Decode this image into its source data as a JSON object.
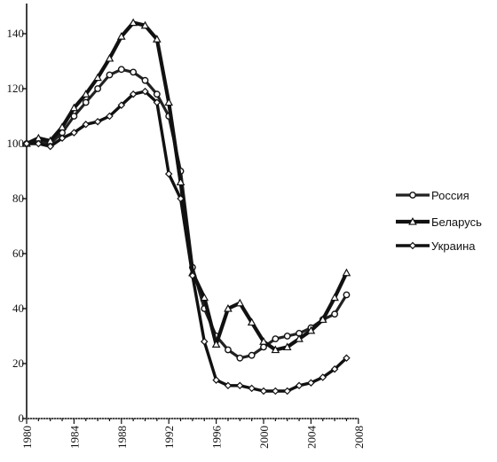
{
  "chart_data": {
    "type": "line",
    "title": "",
    "xlabel": "",
    "ylabel": "",
    "xlim": [
      1980,
      2008
    ],
    "ylim": [
      0,
      150
    ],
    "x_ticks": [
      "1980",
      "1984",
      "1988",
      "1992",
      "1996",
      "2000",
      "2004",
      "2008"
    ],
    "y_ticks": [
      "0",
      "20",
      "40",
      "60",
      "80",
      "100",
      "120",
      "140"
    ],
    "grid": false,
    "legend_position": "right",
    "x": [
      1980,
      1981,
      1982,
      1983,
      1984,
      1985,
      1986,
      1987,
      1988,
      1989,
      1990,
      1991,
      1992,
      1993,
      1994,
      1995,
      1996,
      1997,
      1998,
      1999,
      2000,
      2001,
      2002,
      2003,
      2004,
      2005,
      2006,
      2007
    ],
    "series": [
      {
        "name": "Россия",
        "marker": "circle",
        "color": "#222222",
        "values": [
          100,
          101,
          100,
          104,
          110,
          115,
          120,
          125,
          127,
          126,
          123,
          118,
          110,
          90,
          55,
          40,
          30,
          25,
          22,
          23,
          26,
          29,
          30,
          31,
          33,
          36,
          38,
          45
        ]
      },
      {
        "name": "Беларусь",
        "marker": "triangle",
        "color": "#111111",
        "values": [
          100,
          102,
          101,
          106,
          113,
          118,
          124,
          131,
          139,
          144,
          143,
          138,
          115,
          86,
          53,
          44,
          27,
          40,
          42,
          35,
          28,
          25,
          26,
          29,
          32,
          36,
          44,
          53
        ]
      },
      {
        "name": "Украина",
        "marker": "diamond",
        "color": "#111111",
        "values": [
          100,
          100,
          99,
          102,
          104,
          107,
          108,
          110,
          114,
          118,
          119,
          115,
          89,
          80,
          52,
          28,
          14,
          12,
          12,
          11,
          10,
          10,
          10,
          12,
          13,
          15,
          18,
          22
        ]
      }
    ]
  }
}
